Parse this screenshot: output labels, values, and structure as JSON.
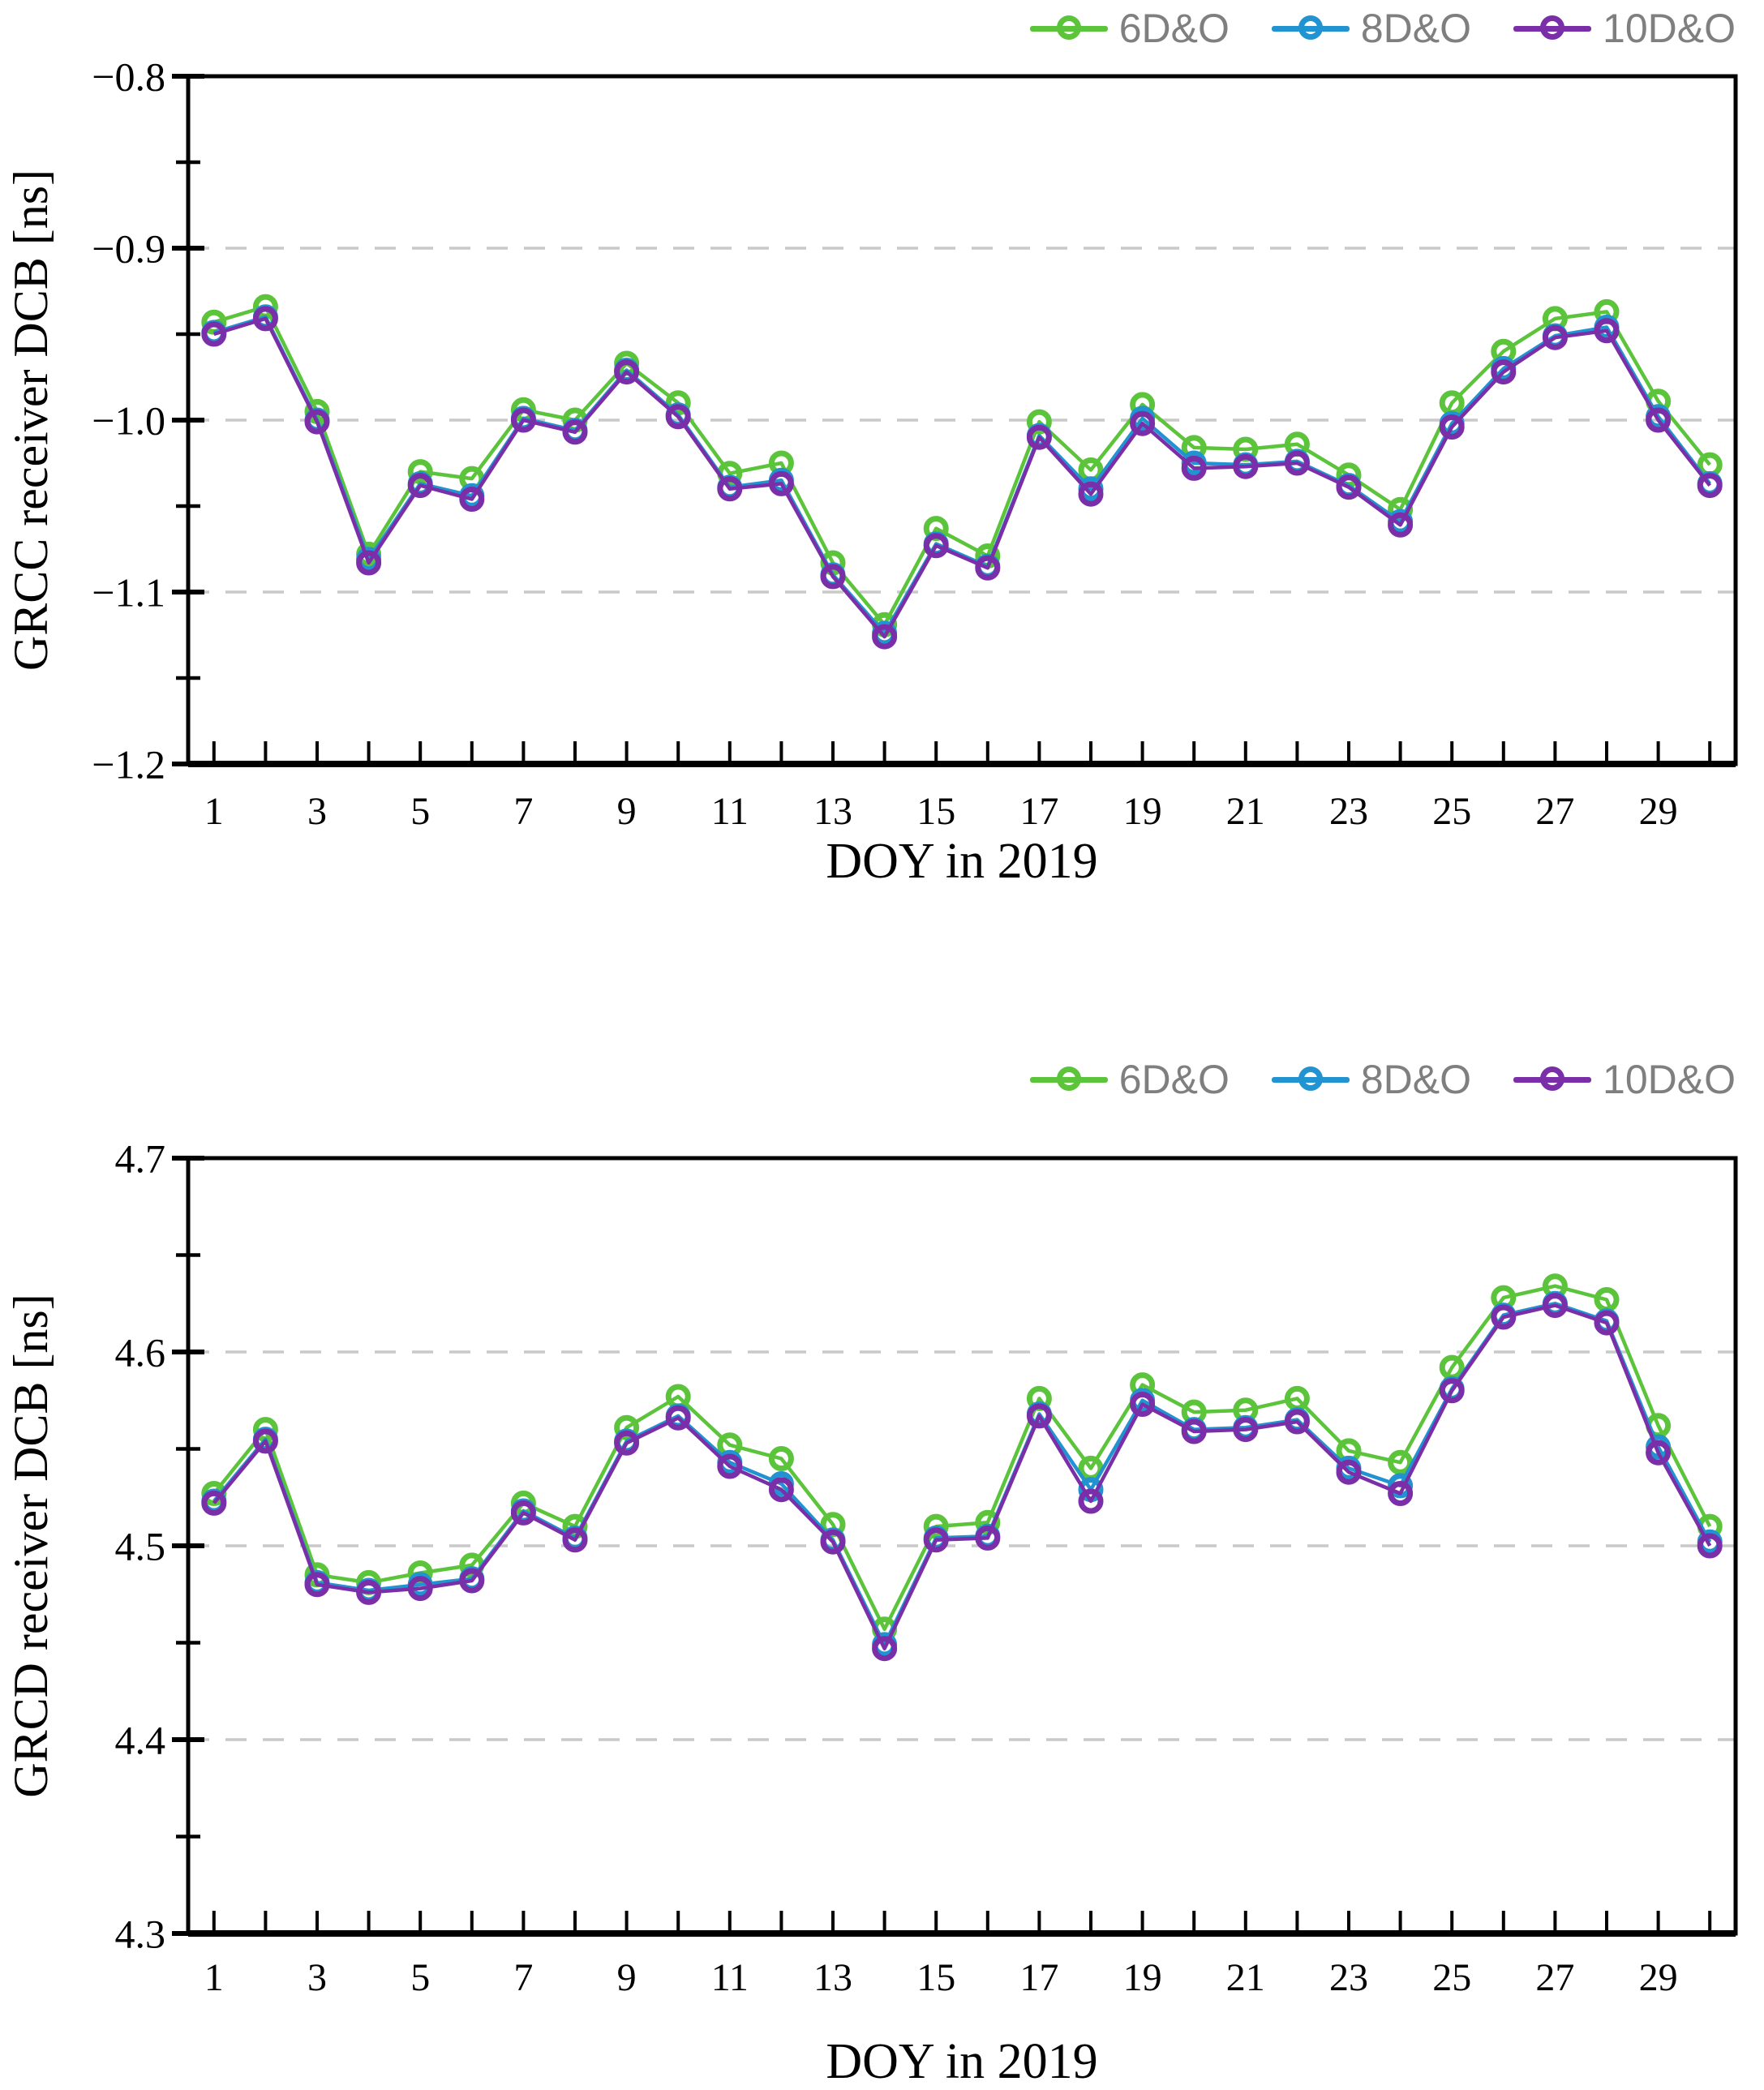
{
  "figure": {
    "background": "#ffffff",
    "axis_color": "#000000",
    "gridline_color": "#c9c9c9",
    "legend_text_color": "#7f7f7f"
  },
  "chart_data": [
    {
      "type": "line",
      "title": "",
      "xlabel": "DOY in 2019",
      "ylabel": "GRCC receiver DCB [ns]",
      "x": [
        1,
        2,
        3,
        4,
        5,
        6,
        7,
        8,
        9,
        10,
        11,
        12,
        13,
        14,
        15,
        16,
        17,
        18,
        19,
        20,
        21,
        22,
        23,
        24,
        25,
        26,
        27,
        28,
        29,
        30
      ],
      "xtick_labels": [
        "1",
        "3",
        "5",
        "7",
        "9",
        "11",
        "13",
        "15",
        "17",
        "19",
        "21",
        "23",
        "25",
        "27",
        "29"
      ],
      "ylim": [
        -1.2,
        -0.8
      ],
      "yticks": [
        -0.8,
        -0.9,
        -1.0,
        -1.1,
        -1.2
      ],
      "ytick_labels": [
        "−0.8",
        "−0.9",
        "−1.0",
        "−1.1",
        "−1.2"
      ],
      "yticks_minor": [
        -0.85,
        -0.95,
        -1.05,
        -1.15
      ],
      "gridlines": [
        -0.8,
        -0.9,
        -1.0,
        -1.1
      ],
      "grid_style": "dashed-horizontal",
      "legend_position": "top-right",
      "marker": "open-circle",
      "series": [
        {
          "name": "6D&O",
          "color": "#5bc43b",
          "values": [
            -0.943,
            -0.934,
            -0.995,
            -1.078,
            -1.03,
            -1.034,
            -0.994,
            -1.0,
            -0.967,
            -0.99,
            -1.031,
            -1.025,
            -1.083,
            -1.119,
            -1.063,
            -1.079,
            -1.001,
            -1.029,
            -0.991,
            -1.016,
            -1.017,
            -1.014,
            -1.032,
            -1.052,
            -0.99,
            -0.96,
            -0.941,
            -0.937,
            -0.989,
            -1.026
          ]
        },
        {
          "name": "8D&O",
          "color": "#2193d1",
          "values": [
            -0.949,
            -0.94,
            -1.0,
            -1.081,
            -1.037,
            -1.044,
            -0.999,
            -1.006,
            -0.971,
            -0.997,
            -1.039,
            -1.035,
            -1.09,
            -1.124,
            -1.072,
            -1.085,
            -1.009,
            -1.04,
            -0.999,
            -1.025,
            -1.026,
            -1.024,
            -1.038,
            -1.059,
            -1.002,
            -0.97,
            -0.951,
            -0.946,
            -0.998,
            -1.037
          ]
        },
        {
          "name": "10D&O",
          "color": "#7a2ea8",
          "values": [
            -0.95,
            -0.941,
            -1.001,
            -1.083,
            -1.038,
            -1.046,
            -1.0,
            -1.007,
            -0.972,
            -0.998,
            -1.04,
            -1.037,
            -1.091,
            -1.126,
            -1.073,
            -1.086,
            -1.01,
            -1.043,
            -1.002,
            -1.028,
            -1.027,
            -1.025,
            -1.039,
            -1.061,
            -1.004,
            -0.972,
            -0.952,
            -0.948,
            -1.0,
            -1.038
          ]
        }
      ]
    },
    {
      "type": "line",
      "title": "",
      "xlabel": "DOY in 2019",
      "ylabel": "GRCD receiver DCB [ns]",
      "x": [
        1,
        2,
        3,
        4,
        5,
        6,
        7,
        8,
        9,
        10,
        11,
        12,
        13,
        14,
        15,
        16,
        17,
        18,
        19,
        20,
        21,
        22,
        23,
        24,
        25,
        26,
        27,
        28,
        29,
        30
      ],
      "xtick_labels": [
        "1",
        "3",
        "5",
        "7",
        "9",
        "11",
        "13",
        "15",
        "17",
        "19",
        "21",
        "23",
        "25",
        "27",
        "29"
      ],
      "ylim": [
        4.3,
        4.7
      ],
      "yticks": [
        4.7,
        4.6,
        4.5,
        4.4,
        4.3
      ],
      "ytick_labels": [
        "4.7",
        "4.6",
        "4.5",
        "4.4",
        "4.3"
      ],
      "yticks_minor": [
        4.65,
        4.55,
        4.45,
        4.35
      ],
      "gridlines": [
        4.7,
        4.6,
        4.5,
        4.4
      ],
      "grid_style": "dashed-horizontal",
      "legend_position": "top-right",
      "marker": "open-circle",
      "series": [
        {
          "name": "6D&O",
          "color": "#5bc43b",
          "values": [
            4.527,
            4.56,
            4.485,
            4.481,
            4.486,
            4.49,
            4.522,
            4.51,
            4.561,
            4.577,
            4.552,
            4.545,
            4.511,
            4.457,
            4.51,
            4.512,
            4.576,
            4.54,
            4.583,
            4.569,
            4.57,
            4.576,
            4.549,
            4.543,
            4.592,
            4.628,
            4.634,
            4.627,
            4.562,
            4.51
          ]
        },
        {
          "name": "8D&O",
          "color": "#2193d1",
          "values": [
            4.523,
            4.555,
            4.481,
            4.477,
            4.48,
            4.483,
            4.518,
            4.504,
            4.554,
            4.567,
            4.543,
            4.532,
            4.503,
            4.449,
            4.504,
            4.505,
            4.568,
            4.529,
            4.575,
            4.56,
            4.561,
            4.565,
            4.54,
            4.531,
            4.581,
            4.619,
            4.625,
            4.616,
            4.551,
            4.502
          ]
        },
        {
          "name": "10D&O",
          "color": "#7a2ea8",
          "values": [
            4.522,
            4.554,
            4.48,
            4.476,
            4.478,
            4.482,
            4.517,
            4.503,
            4.553,
            4.566,
            4.541,
            4.529,
            4.502,
            4.447,
            4.503,
            4.504,
            4.567,
            4.523,
            4.573,
            4.559,
            4.56,
            4.564,
            4.538,
            4.527,
            4.58,
            4.618,
            4.624,
            4.615,
            4.548,
            4.5
          ]
        }
      ]
    }
  ]
}
